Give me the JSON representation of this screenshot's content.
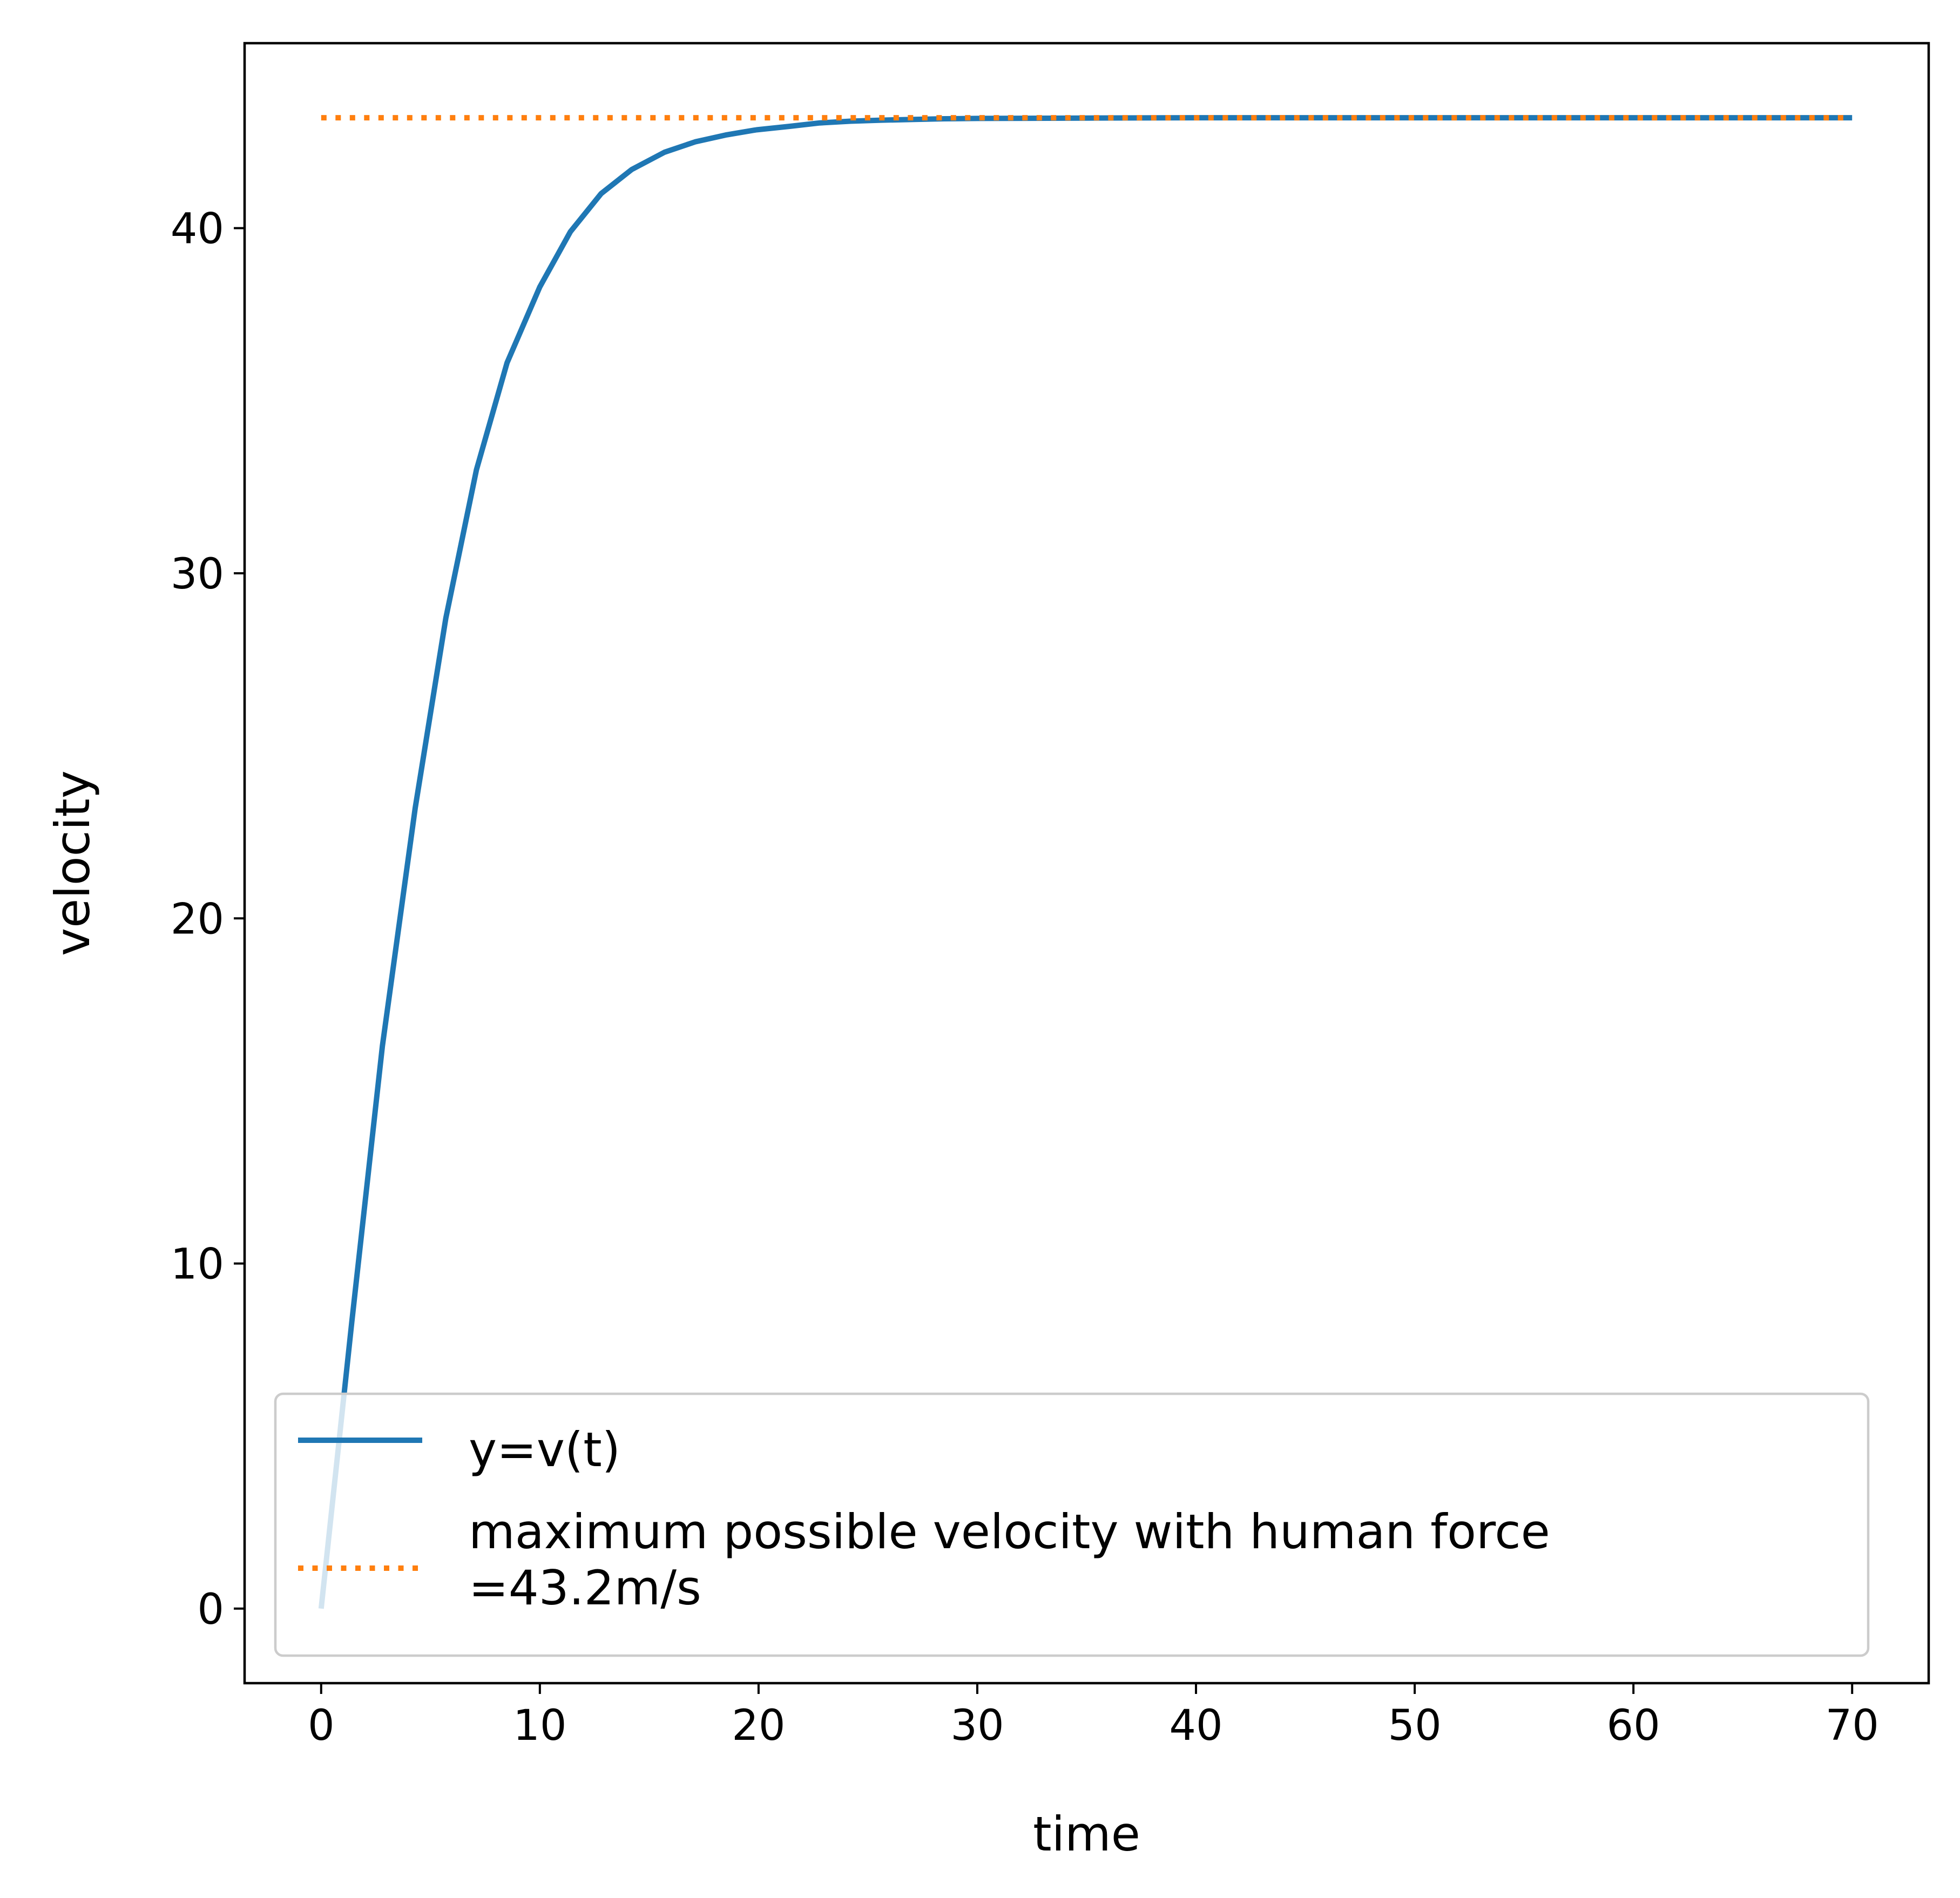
{
  "chart_data": {
    "type": "line",
    "xlabel": "time",
    "ylabel": "velocity",
    "xlim": [
      -3.5,
      73.5
    ],
    "ylim": [
      -2.16,
      45.36
    ],
    "x_ticks": [
      0,
      10,
      20,
      30,
      40,
      50,
      60,
      70
    ],
    "y_ticks": [
      0,
      10,
      20,
      30,
      40
    ],
    "grid": false,
    "legend": {
      "position": "lower-right"
    },
    "series": [
      {
        "name": "y=v(t)",
        "style": "solid",
        "color": "#1f77b4",
        "x": [
          0,
          1.4,
          2.8,
          4.3,
          5.7,
          7.1,
          8.5,
          10.0,
          11.4,
          12.8,
          14.2,
          15.7,
          17.1,
          18.5,
          19.9,
          21.4,
          22.8,
          24.2,
          25.6,
          27.1,
          28.5,
          30.0,
          35.0,
          40.0,
          50.0,
          60.0,
          70.0
        ],
        "y": [
          0,
          8.3,
          16.3,
          23.2,
          28.7,
          33.0,
          36.1,
          38.3,
          39.9,
          41.0,
          41.7,
          42.2,
          42.5,
          42.7,
          42.85,
          42.95,
          43.05,
          43.1,
          43.13,
          43.15,
          43.17,
          43.18,
          43.19,
          43.2,
          43.2,
          43.2,
          43.2
        ]
      },
      {
        "name": "maximum possible velocity with human force\n=43.2m/s",
        "style": "dotted",
        "color": "#ff7f0e",
        "x": [
          0,
          70
        ],
        "y": [
          43.2,
          43.2
        ]
      }
    ]
  }
}
